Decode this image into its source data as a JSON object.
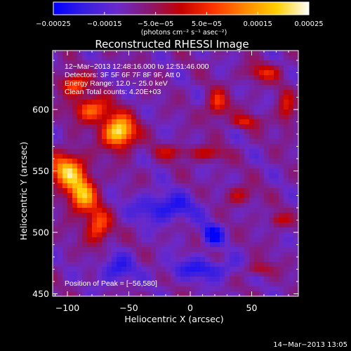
{
  "chart_data": {
    "type": "heatmap",
    "title": "Reconstructed RHESSI Image",
    "xlabel": "Heliocentric X (arcsec)",
    "ylabel": "Heliocentric Y (arcsec)",
    "xlim": [
      -112,
      88
    ],
    "ylim": [
      448,
      648
    ],
    "x_ticks": [
      -100,
      -50,
      0,
      50
    ],
    "x_tick_labels": [
      "−100",
      "−50",
      "0",
      "50"
    ],
    "y_ticks": [
      450,
      500,
      550,
      600
    ],
    "y_tick_labels": [
      "450",
      "500",
      "550",
      "600"
    ],
    "colorbar": {
      "range": [
        -0.00025,
        0.00025
      ],
      "ticks": [
        -0.00025,
        -0.00015,
        -5e-05,
        5e-05,
        0.00015,
        0.00025
      ],
      "tick_labels": [
        "−0.00025",
        "−0.00015",
        "−5.0e−05",
        "5.0e−05",
        "0.00015",
        "0.00025"
      ],
      "unit_label": "(photons cm⁻² s⁻¹ asec⁻²)",
      "colors": [
        "#0000ff",
        "#3a1fe0",
        "#6a2acb",
        "#8a1870",
        "#c40000",
        "#ff3300",
        "#ff8800",
        "#ffd000",
        "#ffffff"
      ]
    },
    "grid": false,
    "peak": [
      -56,
      580
    ],
    "annotations": [
      "12−Mar−2013 12:48:16.000 to 12:51:46.000",
      "Detectors: 3F 5F 6F 7F 8F 9F, Att 0",
      "Energy Range: 12.0 − 25.0 keV",
      "Clean      Total counts: 4.20E+03",
      "Position of Peak = [−56,580]"
    ],
    "sources": [
      {
        "x": -58,
        "y": 582,
        "sx": 9,
        "sy": 9,
        "amp": 1.0
      },
      {
        "x": -80,
        "y": 600,
        "sx": 10,
        "sy": 7,
        "amp": 0.6
      },
      {
        "x": -100,
        "y": 550,
        "sx": 10,
        "sy": 10,
        "amp": 0.8
      },
      {
        "x": -88,
        "y": 530,
        "sx": 8,
        "sy": 10,
        "amp": 0.75
      },
      {
        "x": -75,
        "y": 505,
        "sx": 7,
        "sy": 10,
        "amp": 0.55
      },
      {
        "x": -95,
        "y": 620,
        "sx": 8,
        "sy": 6,
        "amp": 0.55
      },
      {
        "x": 22,
        "y": 604,
        "sx": 6,
        "sy": 8,
        "amp": 0.45
      },
      {
        "x": 60,
        "y": 630,
        "sx": 10,
        "sy": 5,
        "amp": 0.35
      },
      {
        "x": 45,
        "y": 590,
        "sx": 8,
        "sy": 4,
        "amp": 0.35
      },
      {
        "x": 78,
        "y": 600,
        "sx": 5,
        "sy": 10,
        "amp": 0.35
      },
      {
        "x": 15,
        "y": 564,
        "sx": 10,
        "sy": 4,
        "amp": 0.3
      },
      {
        "x": 40,
        "y": 530,
        "sx": 8,
        "sy": 5,
        "amp": 0.3
      },
      {
        "x": 72,
        "y": 510,
        "sx": 6,
        "sy": 4,
        "amp": 0.3
      },
      {
        "x": 55,
        "y": 470,
        "sx": 8,
        "sy": 4,
        "amp": 0.3
      },
      {
        "x": -15,
        "y": 565,
        "sx": 12,
        "sy": 4,
        "amp": 0.25
      },
      {
        "x": 18,
        "y": 498,
        "sx": 6,
        "sy": 6,
        "amp": -0.45
      },
      {
        "x": -20,
        "y": 520,
        "sx": 18,
        "sy": 8,
        "amp": -0.35
      },
      {
        "x": 10,
        "y": 470,
        "sx": 20,
        "sy": 6,
        "amp": -0.3
      },
      {
        "x": -60,
        "y": 470,
        "sx": 10,
        "sy": 8,
        "amp": -0.3
      }
    ]
  },
  "footer": {
    "timestamp": "14−Mar−2013 13:05"
  }
}
